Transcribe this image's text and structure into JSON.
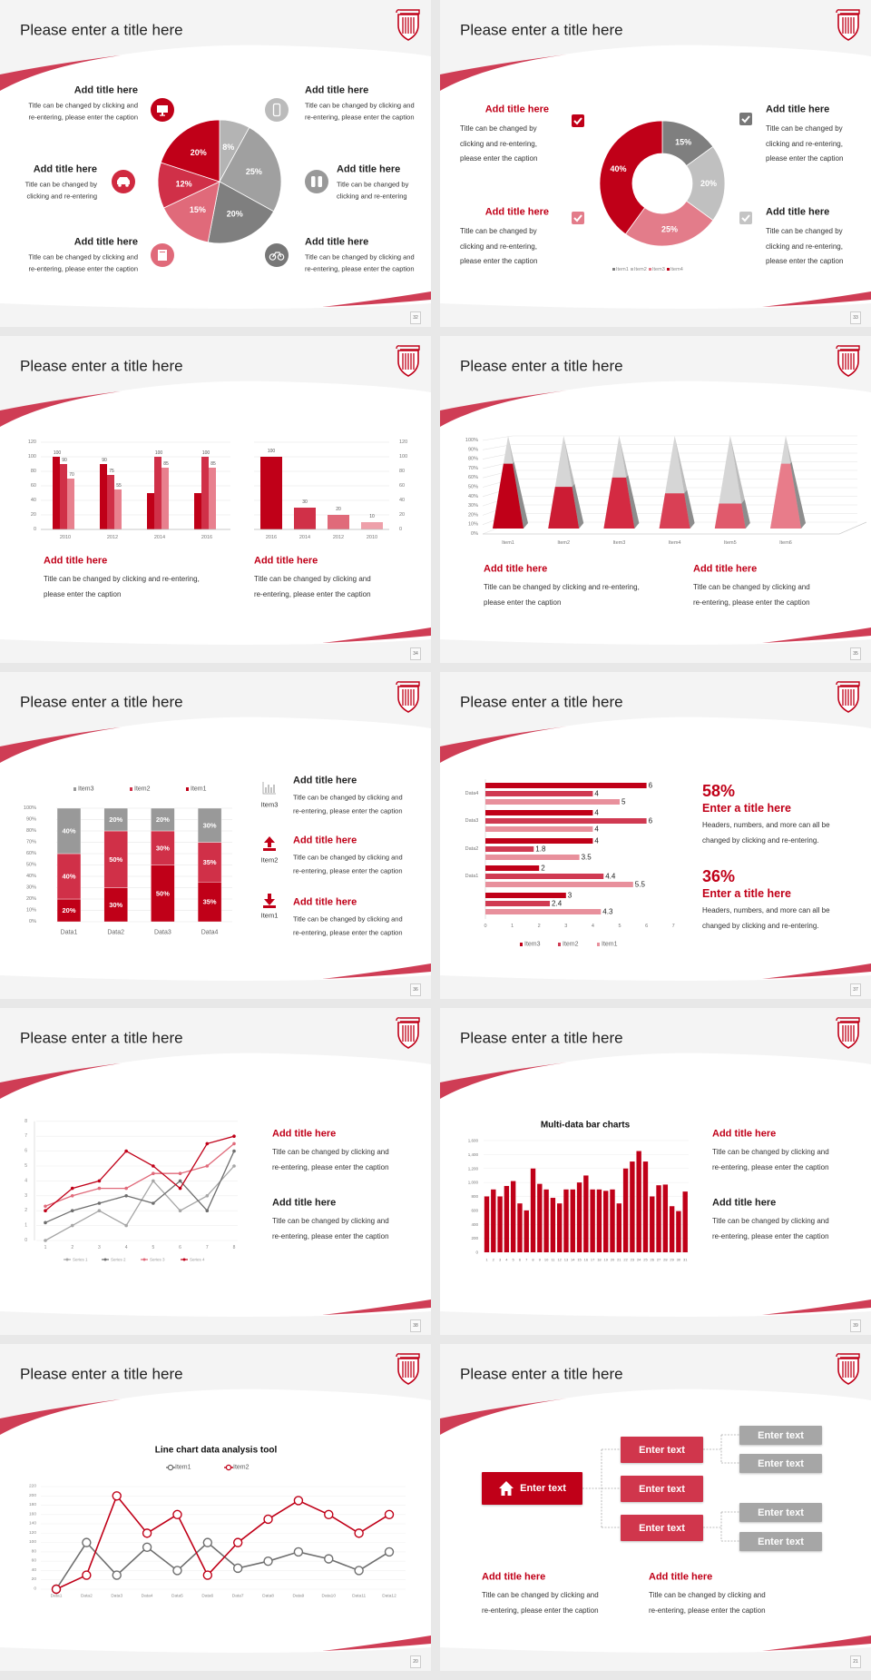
{
  "colors": {
    "brand_red": "#c00018",
    "swoosh": "#cf3d55",
    "gray": "#7f7f7f",
    "light_gray": "#b4b4b4",
    "pink": "#e06a7a"
  },
  "logo": {
    "icon": "shield-column-logo"
  },
  "slides": [
    {
      "page": "32",
      "title": "Please enter a title here",
      "blocks": [
        {
          "title": "Add title here",
          "caption": [
            "Title can be changed by clicking and",
            "re-entering, please enter the caption"
          ],
          "icon": "monitor-icon"
        },
        {
          "title": "Add title here",
          "caption": [
            "Title can be changed by",
            "clicking and re-entering"
          ],
          "icon": "car-icon"
        },
        {
          "title": "Add title here",
          "caption": [
            "Title can be changed by clicking and",
            "re-entering, please enter the caption"
          ],
          "icon": "book-icon"
        },
        {
          "title": "Add title here",
          "caption": [
            "Title can be changed by clicking and",
            "re-entering, please enter the caption"
          ],
          "icon": "phone-icon"
        },
        {
          "title": "Add title here",
          "caption": [
            "Title can be changed by",
            "clicking and re-entering"
          ],
          "icon": "binoculars-icon"
        },
        {
          "title": "Add title here",
          "caption": [
            "Title can be changed by clicking and",
            "re-entering, please enter the caption"
          ],
          "icon": "bicycle-icon"
        }
      ]
    },
    {
      "page": "33",
      "title": "Please enter a title here",
      "blocks": [
        {
          "title": "Add title here",
          "caption": [
            "Title can be changed by",
            "clicking and re-entering,",
            "please enter the caption"
          ],
          "checkbox_color": "#c00018"
        },
        {
          "title": "Add title here",
          "caption": [
            "Title can be changed by",
            "clicking and re-entering,",
            "please enter the caption"
          ],
          "checkbox_color": "#e37c8a"
        },
        {
          "title": "Add title here",
          "caption": [
            "Title can be changed by",
            "clicking and re-entering,",
            "please enter the caption"
          ],
          "checkbox_color": "#777777"
        },
        {
          "title": "Add title here",
          "caption": [
            "Title can be changed by",
            "clicking and re-entering,",
            "please enter the caption"
          ],
          "checkbox_color": "#c4c4c4"
        }
      ]
    },
    {
      "page": "34",
      "title": "Please enter a title here",
      "blocks": [
        {
          "title": "Add title here",
          "caption": [
            "Title can be changed by clicking and re-entering,",
            "please enter the caption"
          ]
        },
        {
          "title": "Add title here",
          "caption": [
            "Title can be changed by clicking and",
            "re-entering, please enter the caption"
          ]
        }
      ]
    },
    {
      "page": "35",
      "title": "Please enter a title here",
      "blocks": [
        {
          "title": "Add title here",
          "caption": [
            "Title can be changed by clicking and re-entering,",
            "please enter the caption"
          ]
        },
        {
          "title": "Add title here",
          "caption": [
            "Title can be changed by clicking and",
            "re-entering, please enter the caption"
          ]
        }
      ]
    },
    {
      "page": "36",
      "title": "Please enter a title here",
      "blocks": [
        {
          "title": "Add title here",
          "caption": [
            "Title can be changed by clicking and",
            "re-entering, please enter the caption"
          ],
          "icon": "bar-chart-icon",
          "icon_label": "Item3"
        },
        {
          "title": "Add title here",
          "caption": [
            "Title can be changed by clicking and",
            "re-entering, please enter the caption"
          ],
          "icon": "upload-icon",
          "icon_label": "Item2"
        },
        {
          "title": "Add title here",
          "caption": [
            "Title can be changed by clicking and",
            "re-entering, please enter the caption"
          ],
          "icon": "download-icon",
          "icon_label": "Item1"
        }
      ]
    },
    {
      "page": "37",
      "title": "Please enter a title here",
      "stats": [
        {
          "value": "58%",
          "title": "Enter a title here",
          "caption": [
            "Headers, numbers, and more can all be",
            "changed by clicking and re-entering."
          ]
        },
        {
          "value": "36%",
          "title": "Enter a title here",
          "caption": [
            "Headers, numbers, and more can all be",
            "changed by clicking and re-entering."
          ]
        }
      ]
    },
    {
      "page": "38",
      "title": "Please enter a title here",
      "blocks": [
        {
          "title": "Add title here",
          "caption": [
            "Title can be changed by clicking and",
            "re-entering, please enter the caption"
          ]
        },
        {
          "title": "Add title here",
          "caption": [
            "Title can be changed by clicking and",
            "re-entering, please enter the caption"
          ]
        }
      ]
    },
    {
      "page": "39",
      "title": "Please enter a title here",
      "blocks": [
        {
          "title": "Add title here",
          "caption": [
            "Title can be changed by clicking and",
            "re-entering, please enter the caption"
          ]
        },
        {
          "title": "Add title here",
          "caption": [
            "Title can be changed by clicking and",
            "re-entering, please enter the caption"
          ]
        }
      ]
    },
    {
      "page": "20",
      "title": "Please enter a title here"
    },
    {
      "page": "21",
      "title": "Please enter a title here",
      "tree": {
        "root": "Enter text",
        "root_icon": "home-icon",
        "mid": [
          "Enter text",
          "Enter text",
          "Enter text"
        ],
        "leaves": [
          "Enter text",
          "Enter text",
          "Enter text",
          "Enter text"
        ]
      },
      "blocks": [
        {
          "title": "Add title here",
          "caption": [
            "Title can be changed by clicking and",
            "re-entering, please enter the caption"
          ]
        },
        {
          "title": "Add title here",
          "caption": [
            "Title can be changed by clicking and",
            "re-entering, please enter the caption"
          ]
        }
      ]
    }
  ],
  "chart_data": [
    {
      "type": "pie",
      "values": [
        8,
        25,
        20,
        15,
        12,
        20
      ],
      "labels": [
        "8%",
        "25%",
        "20%",
        "15%",
        "12%",
        "20%"
      ],
      "colors": [
        "#b4b4b4",
        "#a0a0a0",
        "#7f7f7f",
        "#e06a7a",
        "#d03048",
        "#c00018"
      ]
    },
    {
      "type": "pie",
      "hole": true,
      "categories": [
        "Item1",
        "Item2",
        "Item3",
        "Item4"
      ],
      "values": [
        15,
        20,
        25,
        40
      ],
      "labels": [
        "15%",
        "20%",
        "25%",
        "40%"
      ],
      "colors": [
        "#7f7f7f",
        "#c0c0c0",
        "#e37c8a",
        "#c00018"
      ],
      "legend": "bottom"
    },
    {
      "type": "bar",
      "categories": [
        "2010",
        "2012",
        "2014",
        "2016"
      ],
      "ylim": [
        0,
        120
      ],
      "yticks": [
        "0",
        "20",
        "40",
        "60",
        "80",
        "100",
        "120"
      ],
      "grid": true,
      "series": [
        {
          "values": [
            100,
            90,
            50,
            50
          ],
          "labels": [
            "100",
            "90",
            "",
            ""
          ],
          "color": "#c00018"
        },
        {
          "values": [
            90,
            75,
            100,
            100
          ],
          "labels": [
            "90",
            "75",
            "100",
            "100"
          ],
          "color": "#d03048"
        },
        {
          "values": [
            70,
            55,
            85,
            85
          ],
          "labels": [
            "70",
            "55",
            "85",
            "85"
          ],
          "color": "#e8808e"
        }
      ]
    },
    {
      "type": "bar",
      "categories": [
        "2016",
        "2014",
        "2012",
        "2010"
      ],
      "values": [
        100,
        30,
        20,
        10
      ],
      "labels": [
        "100",
        "30",
        "20",
        "10"
      ],
      "ylim": [
        0,
        120
      ],
      "yticks": [
        "0",
        "20",
        "40",
        "60",
        "80",
        "100",
        "120"
      ],
      "y_axis": "right",
      "grid": true,
      "colors": [
        "#c00018",
        "#d03048",
        "#e06a7a",
        "#eea0aa"
      ]
    },
    {
      "type": "bar",
      "style": "3d-pyramid",
      "categories": [
        "Item1",
        "Item2",
        "Item3",
        "Item4",
        "Item5",
        "Item6"
      ],
      "values": [
        70,
        45,
        55,
        38,
        27,
        70
      ],
      "ylim": [
        0,
        100
      ],
      "yticks": [
        "0%",
        "10%",
        "20%",
        "30%",
        "40%",
        "50%",
        "60%",
        "70%",
        "80%",
        "90%",
        "100%"
      ],
      "grid": true,
      "colors": [
        "#c00018",
        "#cc1c34",
        "#d42a42",
        "#d94055",
        "#e05a6c",
        "#e87c8a"
      ]
    },
    {
      "type": "bar",
      "style": "stacked-100",
      "categories": [
        "Data1",
        "Data2",
        "Data3",
        "Data4"
      ],
      "ylim": [
        0,
        100
      ],
      "yticks": [
        "0%",
        "10%",
        "20%",
        "30%",
        "40%",
        "50%",
        "60%",
        "70%",
        "80%",
        "90%",
        "100%"
      ],
      "legend": "top",
      "grid": true,
      "series": [
        {
          "name": "Item1",
          "values": [
            20,
            30,
            50,
            35
          ],
          "labels": [
            "20%",
            "30%",
            "50%",
            "35%"
          ],
          "color": "#c00018"
        },
        {
          "name": "Item2",
          "values": [
            40,
            50,
            30,
            35
          ],
          "labels": [
            "40%",
            "50%",
            "30%",
            "35%"
          ],
          "color": "#d03048"
        },
        {
          "name": "Item3",
          "values": [
            40,
            20,
            20,
            30
          ],
          "labels": [
            "40%",
            "20%",
            "20%",
            "30%"
          ],
          "color": "#999999"
        }
      ],
      "legend_order": [
        "Item3",
        "Item2",
        "Item1"
      ]
    },
    {
      "type": "bar",
      "orientation": "horizontal",
      "categories": [
        "Data4",
        "Data3",
        "Data2",
        "Data1",
        ""
      ],
      "xlim": [
        0,
        7
      ],
      "xticks": [
        "0",
        "1",
        "2",
        "3",
        "4",
        "5",
        "6",
        "7"
      ],
      "legend": "bottom",
      "series": [
        {
          "name": "Item3",
          "values": [
            6,
            4,
            4,
            2,
            3
          ],
          "labels": [
            "6",
            "4",
            "4",
            "2",
            "3"
          ],
          "color": "#c00018"
        },
        {
          "name": "Item2",
          "values": [
            4,
            6,
            1.8,
            4.4,
            2.4
          ],
          "labels": [
            "4",
            "6",
            "1.8",
            "4.4",
            "2.4"
          ],
          "color": "#d03a52"
        },
        {
          "name": "Item1",
          "values": [
            5,
            4,
            3.5,
            5.5,
            4.3
          ],
          "labels": [
            "5",
            "4",
            "3.5",
            "5.5",
            "4.3"
          ],
          "color": "#e8909c"
        }
      ]
    },
    {
      "type": "line",
      "x": [
        "1",
        "2",
        "3",
        "4",
        "5",
        "6",
        "7",
        "8"
      ],
      "ylim": [
        0,
        8
      ],
      "yticks": [
        "0",
        "1",
        "2",
        "3",
        "4",
        "5",
        "6",
        "7",
        "8"
      ],
      "legend": "bottom",
      "grid": true,
      "series": [
        {
          "name": "Series 1",
          "values": [
            0,
            1,
            2,
            1,
            4,
            2,
            3,
            5
          ],
          "color": "#a6a6a6"
        },
        {
          "name": "Series 2",
          "values": [
            1.2,
            2,
            2.5,
            3,
            2.5,
            4,
            2,
            6
          ],
          "color": "#6e6e6e"
        },
        {
          "name": "Series 3",
          "values": [
            2.3,
            3,
            3.5,
            3.5,
            4.5,
            4.5,
            5,
            6.5
          ],
          "color": "#e06a7a"
        },
        {
          "name": "Series 4",
          "values": [
            2,
            3.5,
            4,
            6,
            5,
            3.5,
            6.5,
            7
          ],
          "color": "#c00018"
        }
      ]
    },
    {
      "type": "bar",
      "title": "Multi-data bar charts",
      "categories": [
        "1",
        "2",
        "3",
        "4",
        "5",
        "6",
        "7",
        "8",
        "9",
        "10",
        "11",
        "12",
        "13",
        "14",
        "15",
        "16",
        "17",
        "18",
        "19",
        "20",
        "21",
        "22",
        "23",
        "24",
        "25",
        "26",
        "27",
        "28",
        "29",
        "30",
        "31"
      ],
      "values": [
        800,
        900,
        800,
        950,
        1020,
        700,
        600,
        1200,
        980,
        900,
        780,
        700,
        900,
        900,
        1000,
        1100,
        900,
        900,
        880,
        900,
        700,
        1200,
        1300,
        1450,
        1300,
        800,
        960,
        970,
        660,
        590,
        870
      ],
      "ylim": [
        0,
        1600
      ],
      "yticks": [
        "0",
        "200",
        "400",
        "600",
        "800",
        "1,000",
        "1,200",
        "1,400",
        "1,600"
      ],
      "color": "#c00018",
      "grid": true
    },
    {
      "type": "line",
      "title": "Line chart data analysis tool",
      "x": [
        "Data1",
        "Data2",
        "Data3",
        "Data4",
        "Data5",
        "Data6",
        "Data7",
        "Data8",
        "Data9",
        "Data10",
        "Data11",
        "Data12"
      ],
      "ylim": [
        0,
        220
      ],
      "yticks": [
        "0",
        "20",
        "40",
        "60",
        "80",
        "100",
        "120",
        "140",
        "160",
        "180",
        "200",
        "220"
      ],
      "legend": "top",
      "grid": true,
      "series": [
        {
          "name": "Item1",
          "values": [
            0,
            100,
            30,
            90,
            40,
            100,
            45,
            60,
            80,
            65,
            40,
            80
          ],
          "color": "#6e6e6e"
        },
        {
          "name": "Item2",
          "values": [
            0,
            30,
            200,
            120,
            160,
            30,
            100,
            150,
            190,
            160,
            120,
            160
          ],
          "color": "#c00018"
        }
      ]
    }
  ]
}
